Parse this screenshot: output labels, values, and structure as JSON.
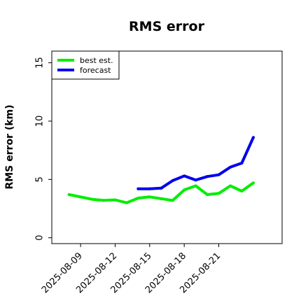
{
  "chart_data": {
    "type": "line",
    "title": "RMS error",
    "xlabel": "",
    "ylabel": "RMS error (km)",
    "x_ticks": [
      "2025-08-09",
      "2025-08-12",
      "2025-08-15",
      "2025-08-18",
      "2025-08-21"
    ],
    "y_ticks": [
      0,
      5,
      10,
      15
    ],
    "xlim": [
      "2025-08-06T12:00",
      "2025-08-26T12:00"
    ],
    "ylim": [
      -0.5,
      16
    ],
    "grid": false,
    "legend_position": "upper-left",
    "series": [
      {
        "name": "best est.",
        "color": "#00ee00",
        "points": [
          [
            "2025-08-08",
            3.7
          ],
          [
            "2025-08-09",
            3.5
          ],
          [
            "2025-08-10",
            3.3
          ],
          [
            "2025-08-11",
            3.2
          ],
          [
            "2025-08-12",
            3.25
          ],
          [
            "2025-08-13",
            3.0
          ],
          [
            "2025-08-14",
            3.4
          ],
          [
            "2025-08-15",
            3.5
          ],
          [
            "2025-08-16",
            3.35
          ],
          [
            "2025-08-17",
            3.2
          ],
          [
            "2025-08-18",
            4.1
          ],
          [
            "2025-08-19",
            4.45
          ],
          [
            "2025-08-20",
            3.7
          ],
          [
            "2025-08-21",
            3.8
          ],
          [
            "2025-08-22",
            4.45
          ],
          [
            "2025-08-23",
            4.0
          ],
          [
            "2025-08-24",
            4.7
          ]
        ]
      },
      {
        "name": "forecast",
        "color": "#0000ee",
        "points": [
          [
            "2025-08-14",
            4.2
          ],
          [
            "2025-08-15",
            4.2
          ],
          [
            "2025-08-16",
            4.25
          ],
          [
            "2025-08-17",
            4.9
          ],
          [
            "2025-08-18",
            5.3
          ],
          [
            "2025-08-19",
            4.95
          ],
          [
            "2025-08-20",
            5.25
          ],
          [
            "2025-08-21",
            5.4
          ],
          [
            "2025-08-22",
            6.05
          ],
          [
            "2025-08-23",
            6.4
          ],
          [
            "2025-08-24",
            8.6
          ]
        ]
      }
    ]
  }
}
